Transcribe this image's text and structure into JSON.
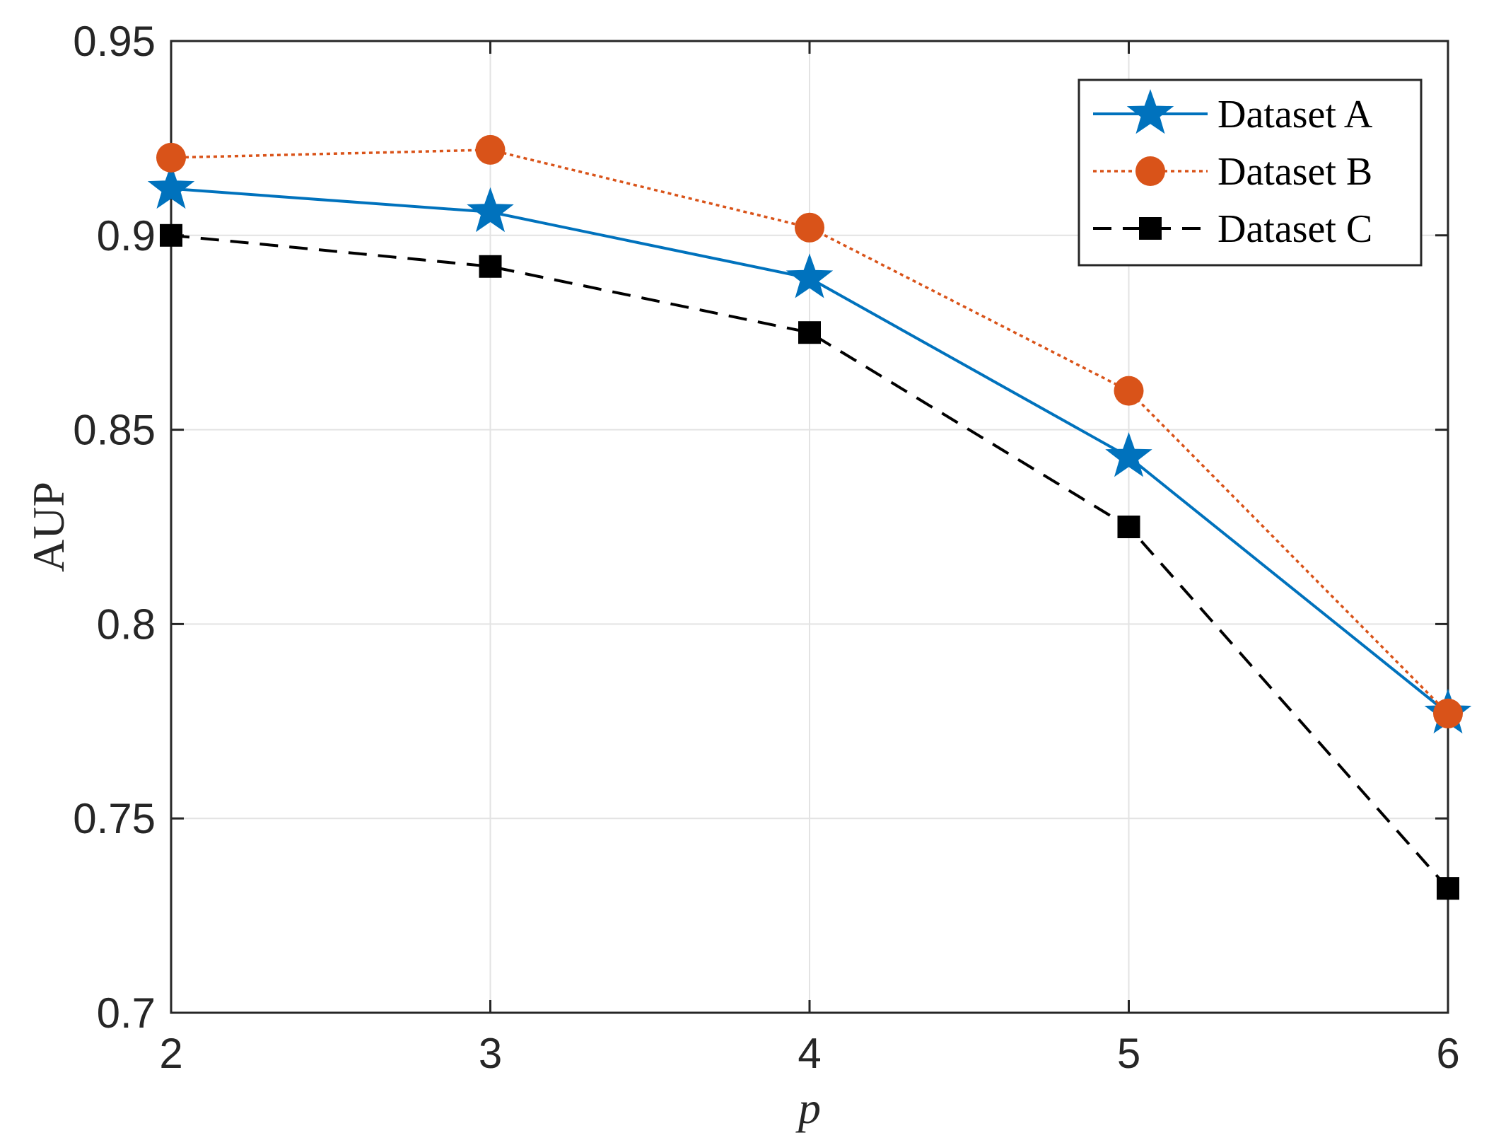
{
  "chart_data": {
    "type": "line",
    "title": "",
    "xlabel": "p",
    "ylabel": "AUP",
    "x": [
      2,
      3,
      4,
      5,
      6
    ],
    "xlim": [
      2,
      6
    ],
    "ylim": [
      0.7,
      0.95
    ],
    "xticks": [
      2,
      3,
      4,
      5,
      6
    ],
    "xtick_labels": [
      "2",
      "3",
      "4",
      "5",
      "6"
    ],
    "yticks": [
      0.7,
      0.75,
      0.8,
      0.85,
      0.9,
      0.95
    ],
    "ytick_labels": [
      "0.7",
      "0.75",
      "0.8",
      "0.85",
      "0.9",
      "0.95"
    ],
    "grid": true,
    "legend_position": "top-right",
    "series": [
      {
        "name": "Dataset A",
        "values": [
          0.912,
          0.906,
          0.889,
          0.843,
          0.777
        ],
        "color": "#0072BD",
        "line": "solid",
        "marker": "star"
      },
      {
        "name": "Dataset B",
        "values": [
          0.92,
          0.922,
          0.902,
          0.86,
          0.777
        ],
        "color": "#D95319",
        "line": "dotted",
        "marker": "circle"
      },
      {
        "name": "Dataset C",
        "values": [
          0.9,
          0.892,
          0.875,
          0.825,
          0.732
        ],
        "color": "#000000",
        "line": "dashed",
        "marker": "square"
      }
    ]
  }
}
